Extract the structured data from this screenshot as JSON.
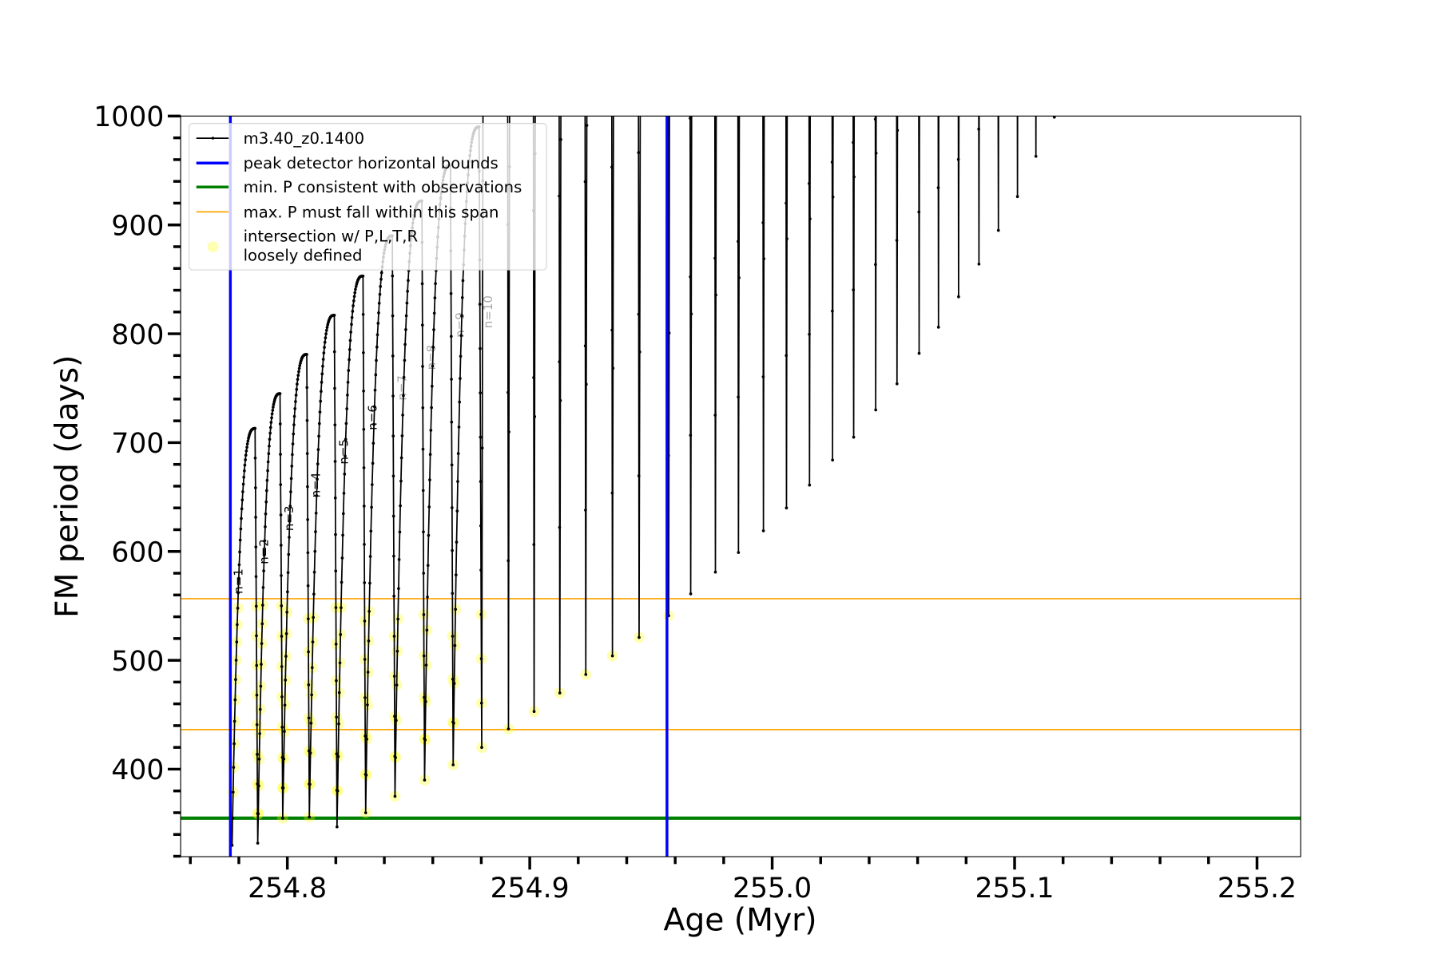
{
  "chart_data": {
    "type": "line",
    "title": "",
    "xlabel": "Age (Myr)",
    "ylabel": "FM period (days)",
    "xlim": [
      254.756,
      255.218
    ],
    "ylim": [
      319.6,
      1000
    ],
    "xticks": [
      "254.8",
      "254.9",
      "255.0",
      "255.1",
      "255.2"
    ],
    "xtick_values": [
      254.8,
      254.9,
      255.0,
      255.1,
      255.2
    ],
    "x_minor_step": 0.02,
    "yticks": [
      "400",
      "500",
      "600",
      "700",
      "800",
      "900",
      "1000"
    ],
    "ytick_values": [
      400,
      500,
      600,
      700,
      800,
      900,
      1000
    ],
    "y_minor_step": 20,
    "legend_position": "upper-left",
    "series": [
      {
        "name": "m3.40_z0.1400",
        "color": "#000000",
        "start": [
          254.7772,
          330
        ],
        "cycles": [
          {
            "drop_age": 254.7878,
            "peak": 713,
            "min_after": 332,
            "label": "n=1"
          },
          {
            "drop_age": 254.7981,
            "peak": 745,
            "min_after": 355,
            "label": "n=2"
          },
          {
            "drop_age": 254.8091,
            "peak": 781,
            "min_after": 356,
            "label": "n=3"
          },
          {
            "drop_age": 254.8205,
            "peak": 817,
            "min_after": 347,
            "label": "n=4"
          },
          {
            "drop_age": 254.8323,
            "peak": 853,
            "min_after": 360,
            "label": "n=5"
          },
          {
            "drop_age": 254.8444,
            "peak": 890,
            "min_after": 375,
            "label": "n=6"
          },
          {
            "drop_age": 254.8566,
            "peak": 922,
            "min_after": 390,
            "label": "n=7"
          },
          {
            "drop_age": 254.8684,
            "peak": 955,
            "min_after": 404,
            "label": "n=8"
          },
          {
            "drop_age": 254.8802,
            "peak": 990,
            "min_after": 420,
            "label": "n=9"
          },
          {
            "drop_age": 254.8912,
            "peak": null,
            "min_after": 437,
            "label": "n=10"
          },
          {
            "drop_age": 254.9018,
            "peak": null,
            "min_after": 453
          },
          {
            "drop_age": 254.9124,
            "peak": null,
            "min_after": 470
          },
          {
            "drop_age": 254.9231,
            "peak": null,
            "min_after": 487
          },
          {
            "drop_age": 254.9341,
            "peak": null,
            "min_after": 504
          },
          {
            "drop_age": 254.9451,
            "peak": null,
            "min_after": 521
          },
          {
            "drop_age": 254.9573,
            "peak": null,
            "min_after": 541
          },
          {
            "drop_age": 254.9664,
            "peak": null,
            "min_after": 561
          },
          {
            "drop_age": 254.9766,
            "peak": null,
            "min_after": 581
          },
          {
            "drop_age": 254.9861,
            "peak": null,
            "min_after": 599
          },
          {
            "drop_age": 254.9964,
            "peak": null,
            "min_after": 619
          },
          {
            "drop_age": 255.0059,
            "peak": null,
            "min_after": 640
          },
          {
            "drop_age": 255.0154,
            "peak": null,
            "min_after": 661
          },
          {
            "drop_age": 255.0249,
            "peak": null,
            "min_after": 684
          },
          {
            "drop_age": 255.0336,
            "peak": null,
            "min_after": 705
          },
          {
            "drop_age": 255.0427,
            "peak": null,
            "min_after": 730
          },
          {
            "drop_age": 255.0515,
            "peak": null,
            "min_after": 754
          },
          {
            "drop_age": 255.0606,
            "peak": null,
            "min_after": 782
          },
          {
            "drop_age": 255.0686,
            "peak": null,
            "min_after": 806
          },
          {
            "drop_age": 255.0769,
            "peak": null,
            "min_after": 834
          },
          {
            "drop_age": 255.0853,
            "peak": null,
            "min_after": 864
          },
          {
            "drop_age": 255.0933,
            "peak": null,
            "min_after": 895
          },
          {
            "drop_age": 255.1012,
            "peak": null,
            "min_after": 926
          },
          {
            "drop_age": 255.1088,
            "peak": null,
            "min_after": 963
          },
          {
            "drop_age": 255.1164,
            "peak": null,
            "min_after": 999
          }
        ]
      }
    ],
    "vlines": {
      "name": "peak detector horizontal bounds",
      "color": "#0000ff",
      "x": [
        254.7765,
        254.9566
      ]
    },
    "hline_min": {
      "name": "min. P consistent with observations",
      "color": "#008000",
      "y": 355
    },
    "hlines_max": {
      "name": "max. P must fall within this span",
      "color": "#ffa500",
      "y": [
        436.4,
        556.6
      ]
    },
    "highlight": {
      "name": "intersection w/ P,L,T,R loosely defined",
      "color": "#ffff00",
      "y_range": [
        355,
        556.6
      ],
      "x_max": 254.9566
    },
    "legend": [
      "m3.40_z0.1400",
      "peak detector horizontal bounds",
      "min. P consistent with observations",
      "max. P must fall within this span",
      "intersection w/ P,L,T,R",
      "loosely defined"
    ]
  }
}
